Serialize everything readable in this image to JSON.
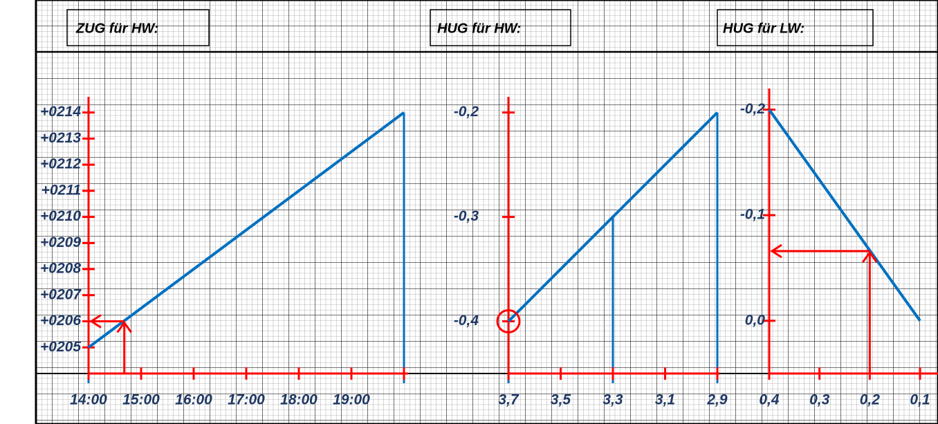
{
  "chart_data": [
    {
      "type": "line",
      "title": "ZUG für HW:",
      "x": [
        14,
        20
      ],
      "series": [
        {
          "values": [
            205,
            214
          ],
          "color": "#0070c0"
        }
      ],
      "xlim": [
        14,
        20
      ],
      "xticks": [
        {
          "value": 14,
          "label": "14:00"
        },
        {
          "value": 15,
          "label": "15:00"
        },
        {
          "value": 16,
          "label": "16:00"
        },
        {
          "value": 17,
          "label": "17:00"
        },
        {
          "value": 18,
          "label": "18:00"
        },
        {
          "value": 19,
          "label": "19:00"
        },
        {
          "value": 20,
          "label": ""
        }
      ],
      "ylim": [
        204,
        214.6
      ],
      "yticks": [
        {
          "value": 214,
          "label": "+0214"
        },
        {
          "value": 213,
          "label": "+0213"
        },
        {
          "value": 212,
          "label": "+0212"
        },
        {
          "value": 211,
          "label": "+0211"
        },
        {
          "value": 210,
          "label": "+0210"
        },
        {
          "value": 209,
          "label": "+0209"
        },
        {
          "value": 208,
          "label": "+0208"
        },
        {
          "value": 207,
          "label": "+0207"
        },
        {
          "value": 206,
          "label": "+0206"
        },
        {
          "value": 205,
          "label": "+0205"
        }
      ],
      "axis_color": "#ff0000",
      "drop_lines": true,
      "arrow": {
        "x": 14.68,
        "y": 206
      }
    },
    {
      "type": "line",
      "title": "HUG für HW:",
      "x": [
        3.7,
        3.3,
        2.9
      ],
      "series": [
        {
          "values": [
            -0.4,
            -0.3,
            -0.2
          ],
          "color": "#0070c0"
        }
      ],
      "xlim": [
        3.7,
        2.9
      ],
      "xticks": [
        {
          "value": 3.7,
          "label": "3,7"
        },
        {
          "value": 3.5,
          "label": "3,5"
        },
        {
          "value": 3.3,
          "label": "3,3"
        },
        {
          "value": 3.1,
          "label": "3,1"
        },
        {
          "value": 2.9,
          "label": "2,9"
        }
      ],
      "ylim": [
        -0.45,
        -0.185
      ],
      "yticks": [
        {
          "value": -0.2,
          "label": "-0,2"
        },
        {
          "value": -0.3,
          "label": "-0,3"
        },
        {
          "value": -0.4,
          "label": "-0,4"
        }
      ],
      "axis_color": "#ff0000",
      "drop_lines": true,
      "highlight": {
        "x": 3.7,
        "y": -0.4
      }
    },
    {
      "type": "line",
      "title": "HUG für LW:",
      "x": [
        0.4,
        0.1
      ],
      "series": [
        {
          "values": [
            -0.2,
            0.0
          ],
          "color": "#0070c0"
        }
      ],
      "xlim": [
        0.4,
        0.1
      ],
      "xticks": [
        {
          "value": 0.4,
          "label": "0,4"
        },
        {
          "value": 0.3,
          "label": "0,3"
        },
        {
          "value": 0.2,
          "label": "0,2"
        },
        {
          "value": 0.1,
          "label": "0,1"
        }
      ],
      "ylim": [
        0.05,
        -0.22
      ],
      "yticks": [
        {
          "value": -0.2,
          "label": "-0,2"
        },
        {
          "value": -0.1,
          "label": "-0,1"
        },
        {
          "value": 0.0,
          "label": "0,0"
        }
      ],
      "axis_color": "#ff0000",
      "drop_lines": false,
      "arrow": {
        "x": 0.2,
        "y": -0.066
      }
    }
  ]
}
